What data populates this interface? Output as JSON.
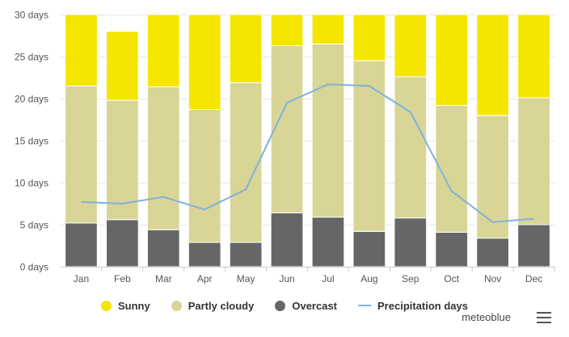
{
  "chart_data": {
    "type": "bar",
    "stacked": true,
    "categories": [
      "Jan",
      "Feb",
      "Mar",
      "Apr",
      "May",
      "Jun",
      "Jul",
      "Aug",
      "Sep",
      "Oct",
      "Nov",
      "Dec"
    ],
    "ylim": [
      0,
      30
    ],
    "yticks": [
      "0 days",
      "5 days",
      "10 days",
      "15 days",
      "20 days",
      "25 days",
      "30 days"
    ],
    "series": [
      {
        "name": "Overcast",
        "color": "#666666",
        "values": [
          5.2,
          5.6,
          4.4,
          2.9,
          2.9,
          6.4,
          5.9,
          4.2,
          5.8,
          4.1,
          3.4,
          5.0
        ]
      },
      {
        "name": "Partly cloudy",
        "color": "#d8d596",
        "values": [
          16.3,
          14.2,
          17.0,
          15.8,
          19.0,
          19.9,
          20.6,
          20.3,
          16.8,
          15.1,
          14.6,
          15.1
        ]
      },
      {
        "name": "Sunny",
        "color": "#f5e600",
        "values": [
          8.5,
          8.2,
          8.6,
          11.3,
          8.1,
          3.7,
          3.5,
          5.5,
          7.4,
          10.8,
          12.0,
          9.9
        ]
      }
    ],
    "line": {
      "name": "Precipitation days",
      "color": "#7fb2dd",
      "values": [
        7.7,
        7.5,
        8.3,
        6.8,
        9.2,
        19.5,
        21.7,
        21.5,
        18.4,
        9.0,
        5.3,
        5.7
      ]
    }
  },
  "legend": {
    "sunny": "Sunny",
    "partly_cloudy": "Partly cloudy",
    "overcast": "Overcast",
    "precipitation": "Precipitation days"
  },
  "credit": "meteoblue",
  "menu_icon": "hamburger-menu-icon"
}
